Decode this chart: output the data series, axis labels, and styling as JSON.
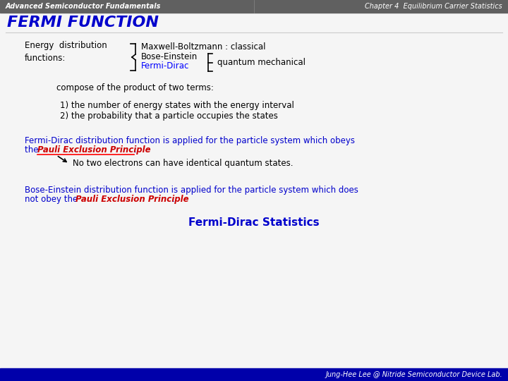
{
  "slide_bg": "#f5f5f5",
  "header_bg": "#606060",
  "header_left": "Advanced Semiconductor Fundamentals",
  "header_right": "Chapter 4  Equilibrium Carrier Statistics",
  "header_font_color": "#ffffff",
  "header_font_size": 7,
  "title": "FERMI FUNCTION",
  "title_color": "#0000cc",
  "title_font_size": 16,
  "footer_bg": "#0000aa",
  "footer_text": "Jung-Hee Lee @ Nitride Semiconductor Device Lab.",
  "footer_color": "#ffffff",
  "footer_font_size": 7,
  "body_font_size": 8.5,
  "body_color": "#000000",
  "blue_color": "#0000cc",
  "red_bold_color": "#cc0000",
  "fermi_dirac_color": "#0000ff"
}
